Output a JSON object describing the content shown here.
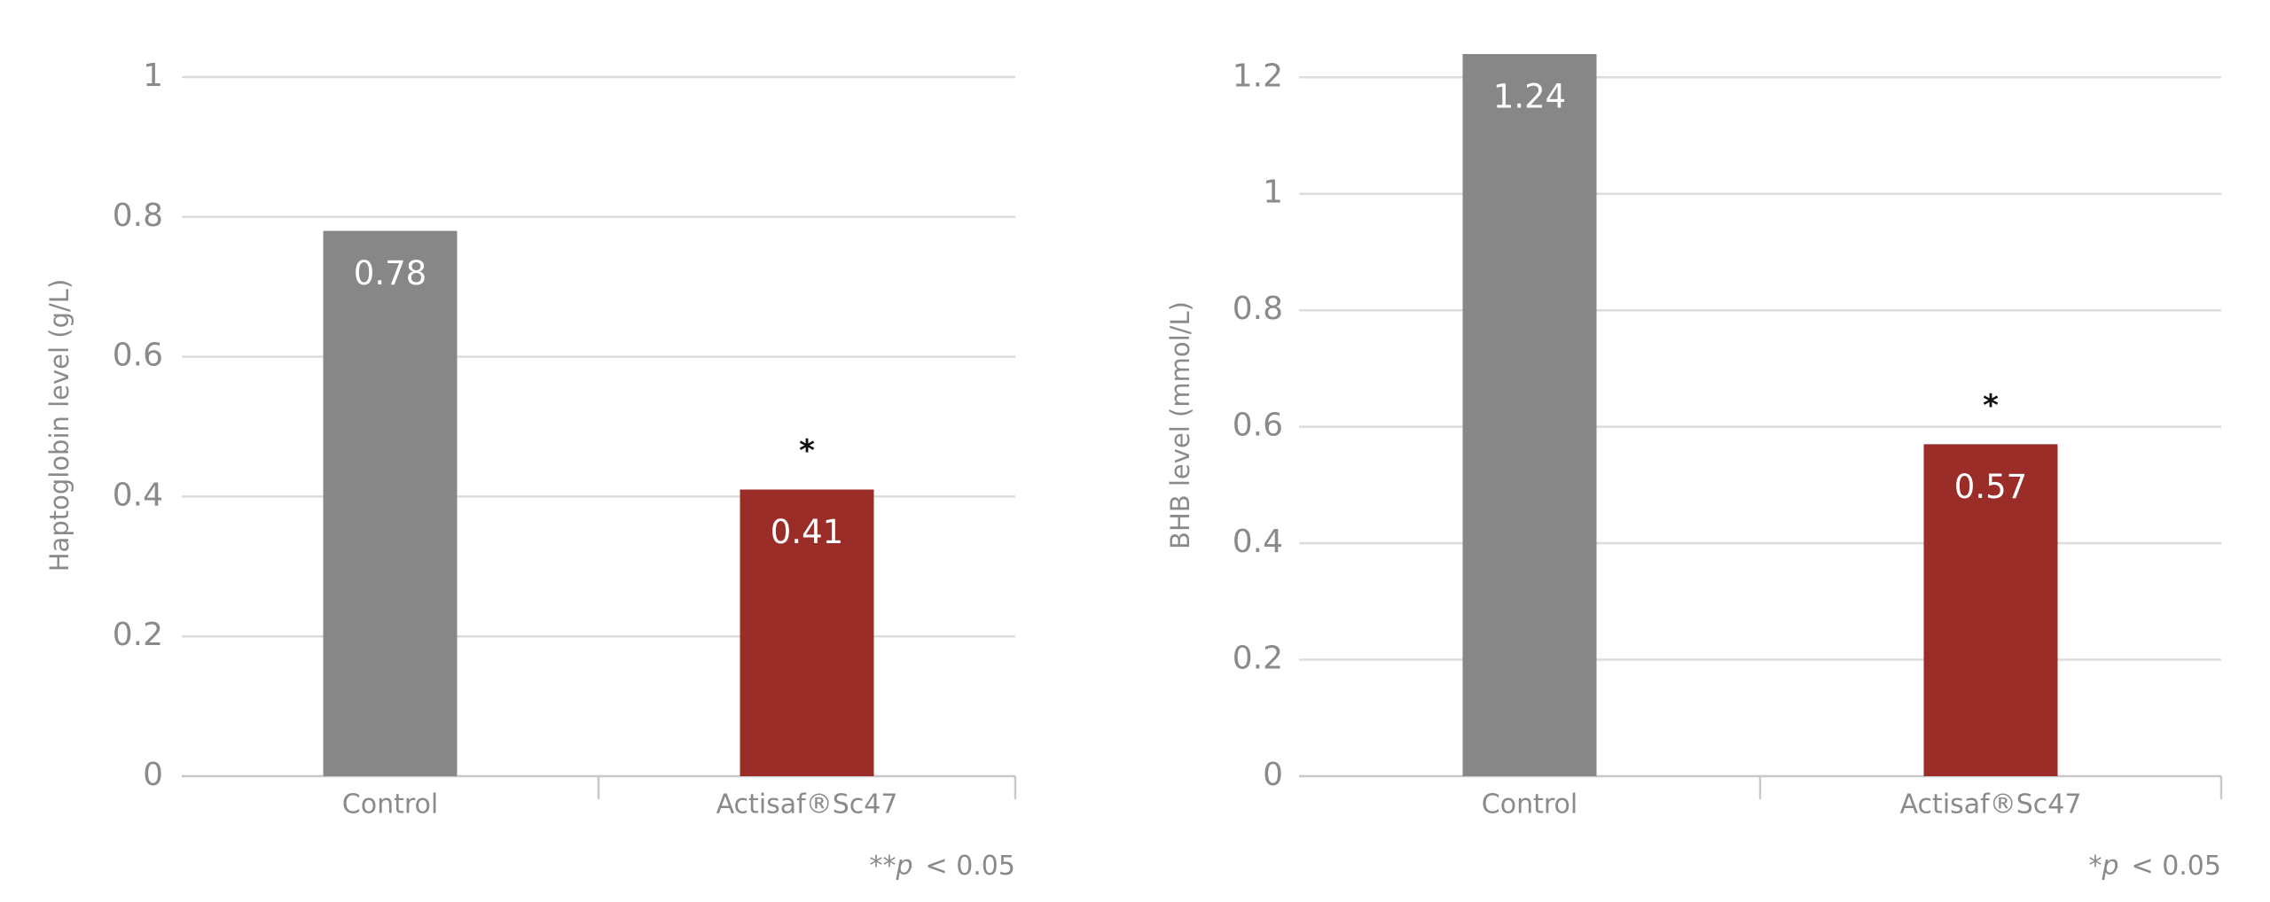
{
  "chart_data": [
    {
      "type": "bar",
      "y_label": "Haptoglobin level (g/L)",
      "categories": [
        "Control",
        "Actisaf®Sc47"
      ],
      "values": [
        0.78,
        0.41
      ],
      "colors": [
        "#878787",
        "#9b2d29"
      ],
      "significance_marks": [
        null,
        "*"
      ],
      "ylim": [
        0,
        1
      ],
      "yticks": [
        0,
        0.2,
        0.4,
        0.6,
        0.8,
        1
      ],
      "grid": true,
      "footnote": {
        "stars": "**",
        "p": "p",
        "threshold": "< 0.05"
      }
    },
    {
      "type": "bar",
      "y_label": "BHB level (mmol/L)",
      "categories": [
        "Control",
        "Actisaf®Sc47"
      ],
      "values": [
        1.24,
        0.57
      ],
      "colors": [
        "#878787",
        "#9b2d29"
      ],
      "significance_marks": [
        null,
        "*"
      ],
      "ylim": [
        0,
        1.24
      ],
      "yticks": [
        0,
        0.2,
        0.4,
        0.6,
        0.8,
        1,
        1.2
      ],
      "grid": true,
      "footnote": {
        "stars": "*",
        "p": "p",
        "threshold": "< 0.05"
      }
    }
  ]
}
